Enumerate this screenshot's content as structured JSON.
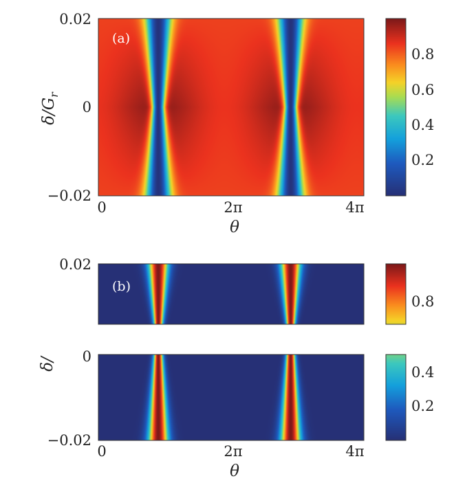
{
  "chart_data": [
    {
      "type": "heatmap",
      "panel_label": "(a)",
      "xlabel": "θ",
      "ylabel": "δ/G",
      "ylabel_sub": "r",
      "x_range": [
        0,
        12.566
      ],
      "y_range": [
        -0.02,
        0.02
      ],
      "x_ticks": [
        "0",
        "2π",
        "4π"
      ],
      "y_ticks": [
        "0.02",
        "0",
        "−0.02"
      ],
      "colorbar_ticks": [
        "0.8",
        "0.6",
        "0.4",
        "0.2"
      ],
      "colorbar_range": [
        0,
        1
      ],
      "minima_theta": [
        2.83,
        9.11
      ],
      "minima_delta": 0,
      "colormap": "jet"
    },
    {
      "type": "heatmap",
      "panel_label": "(b)",
      "xlabel": "θ",
      "ylabel": "δ/",
      "x_range": [
        0,
        12.566
      ],
      "y_range_upper": [
        0.0,
        0.02
      ],
      "y_range_lower": [
        -0.02,
        0.0
      ],
      "x_ticks": [
        "0",
        "2π",
        "4π"
      ],
      "y_ticks_upper": [
        "0.02"
      ],
      "y_ticks_lower": [
        "0",
        "−0.02"
      ],
      "colorbar_upper_ticks": [
        "0.8"
      ],
      "colorbar_upper_range": [
        0.62,
        1.0
      ],
      "colorbar_lower_ticks": [
        "0.4",
        "0.2"
      ],
      "colorbar_lower_range": [
        0.0,
        0.5
      ],
      "peaks_theta": [
        2.83,
        9.11
      ],
      "colormap": "jet"
    }
  ]
}
